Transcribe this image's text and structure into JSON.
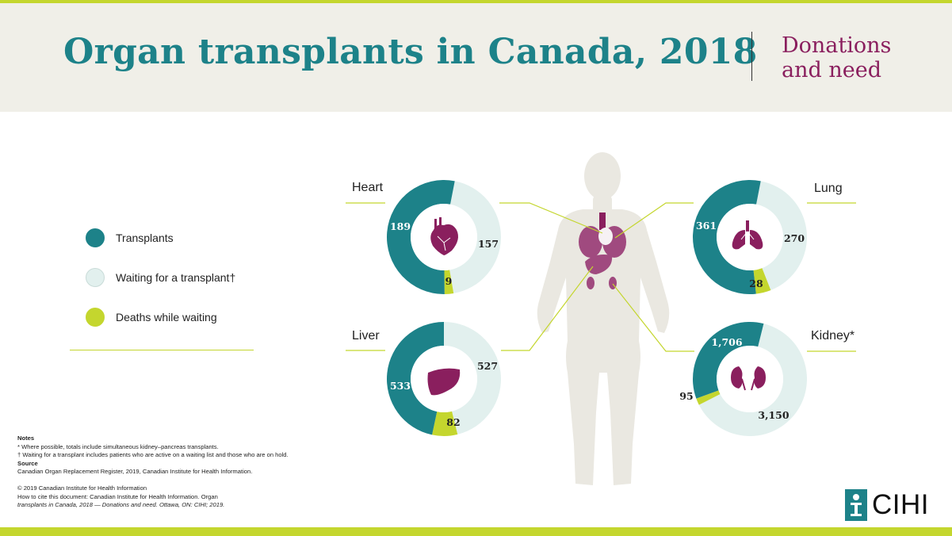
{
  "header": {
    "title": "Organ transplants in Canada, 2018",
    "subtitle_line1": "Donations",
    "subtitle_line2": "and need"
  },
  "colors": {
    "transplants": "#1d8289",
    "waiting": "#e2f0ee",
    "deaths": "#c4d62e",
    "organ": "#8a1f5e",
    "body": "#eae8e1"
  },
  "legend": {
    "items": [
      {
        "label": "Transplants",
        "color": "#1d8289"
      },
      {
        "label": "Waiting for a transplant†",
        "color": "#e2f0ee"
      },
      {
        "label": "Deaths while waiting",
        "color": "#c4d62e"
      }
    ]
  },
  "chart_data": [
    {
      "type": "pie",
      "title": "Heart",
      "categories": [
        "Transplants",
        "Waiting for a transplant†",
        "Deaths while waiting"
      ],
      "values": [
        189,
        157,
        9
      ],
      "labels": [
        "189",
        "157",
        "9"
      ]
    },
    {
      "type": "pie",
      "title": "Lung",
      "categories": [
        "Transplants",
        "Waiting for a transplant†",
        "Deaths while waiting"
      ],
      "values": [
        361,
        270,
        28
      ],
      "labels": [
        "361",
        "270",
        "28"
      ]
    },
    {
      "type": "pie",
      "title": "Liver",
      "categories": [
        "Transplants",
        "Waiting for a transplant†",
        "Deaths while waiting"
      ],
      "values": [
        533,
        527,
        82
      ],
      "labels": [
        "533",
        "527",
        "82"
      ]
    },
    {
      "type": "pie",
      "title": "Kidney*",
      "categories": [
        "Transplants",
        "Waiting for a transplant†",
        "Deaths while waiting"
      ],
      "values": [
        1706,
        3150,
        95
      ],
      "labels": [
        "1,706",
        "3,150",
        "95"
      ]
    }
  ],
  "notes": {
    "heading": "Notes",
    "note1": "*  Where possible, totals include simultaneous kidney–pancreas transplants.",
    "note2": "†  Waiting for a transplant includes patients who are active on a waiting list and those who are on hold.",
    "source_heading": "Source",
    "source": "Canadian Organ Replacement Register, 2019, Canadian Institute for Health Information.",
    "copyright": "© 2019 Canadian Institute for Health Information",
    "cite_line1": "How to cite this document: Canadian Institute for Health Information. Organ",
    "cite_line2": "transplants in Canada, 2018 — Donations and need. Ottawa, ON: CIHI; 2019."
  },
  "logo": {
    "text": "CIHI"
  }
}
